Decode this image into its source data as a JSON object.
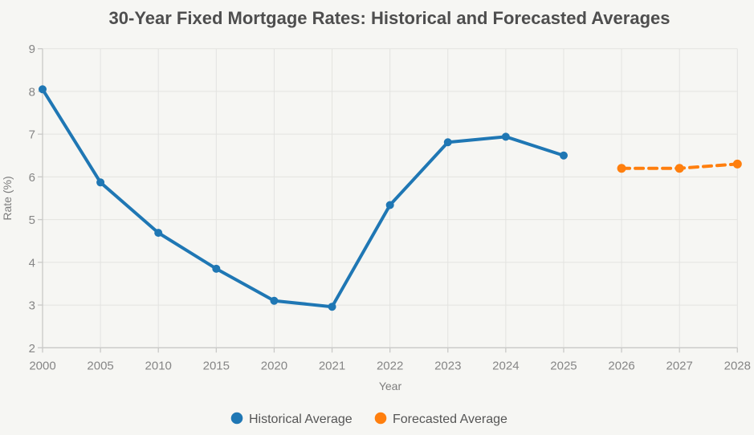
{
  "chart_data": {
    "type": "line",
    "title": "30-Year Fixed Mortgage Rates: Historical and Forecasted Averages",
    "xlabel": "Year",
    "ylabel": "Rate (%)",
    "categories": [
      "2000",
      "2005",
      "2010",
      "2015",
      "2020",
      "2021",
      "2022",
      "2023",
      "2024",
      "2025",
      "2026",
      "2027",
      "2028"
    ],
    "yticks": [
      2,
      3,
      4,
      5,
      6,
      7,
      8,
      9
    ],
    "ylim": [
      2,
      9
    ],
    "grid": true,
    "legend_position": "bottom",
    "series": [
      {
        "name": "Historical Average",
        "color": "#1f77b4",
        "line_style": "solid",
        "categories": [
          "2000",
          "2005",
          "2010",
          "2015",
          "2020",
          "2021",
          "2022",
          "2023",
          "2024",
          "2025"
        ],
        "values": [
          8.05,
          5.87,
          4.69,
          3.85,
          3.1,
          2.96,
          5.34,
          6.81,
          6.94,
          6.5
        ]
      },
      {
        "name": "Forecasted Average",
        "color": "#ff7f0e",
        "line_style": "dashed",
        "categories": [
          "2026",
          "2027",
          "2028"
        ],
        "values": [
          6.2,
          6.2,
          6.3
        ]
      }
    ]
  },
  "colors": {
    "background": "#f6f6f3",
    "gridline": "#e3e3e0",
    "axis": "#c9c9c7",
    "tick_label": "#868686",
    "axis_title": "#7d7d7d",
    "chart_title": "#4e4e4e",
    "legend_text": "#565656",
    "historical": "#1f77b4",
    "forecast": "#ff7f0e"
  }
}
